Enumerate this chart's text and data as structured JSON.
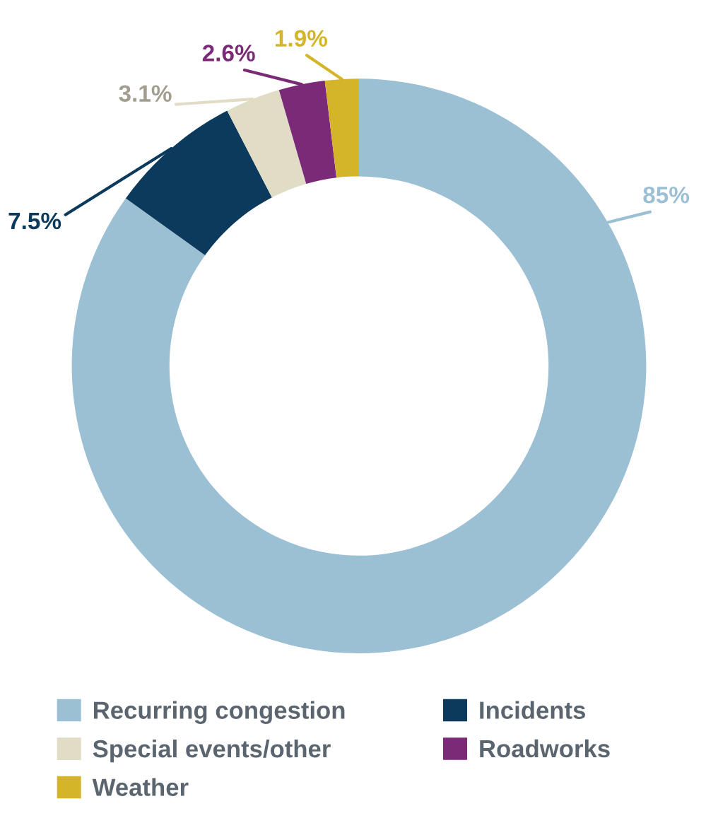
{
  "chart_data": {
    "type": "donut",
    "categories": [
      "Recurring congestion",
      "Incidents",
      "Special events/other",
      "Roadworks",
      "Weather"
    ],
    "values": [
      85,
      7.5,
      3.1,
      2.6,
      1.9
    ],
    "colors": [
      "#9bbfd3",
      "#0b3a5c",
      "#e0dcc6",
      "#7b2a78",
      "#d4b52a"
    ],
    "value_labels": [
      "85%",
      "7.5%",
      "3.1%",
      "2.6%",
      "1.9%"
    ],
    "legend": "bottom"
  }
}
